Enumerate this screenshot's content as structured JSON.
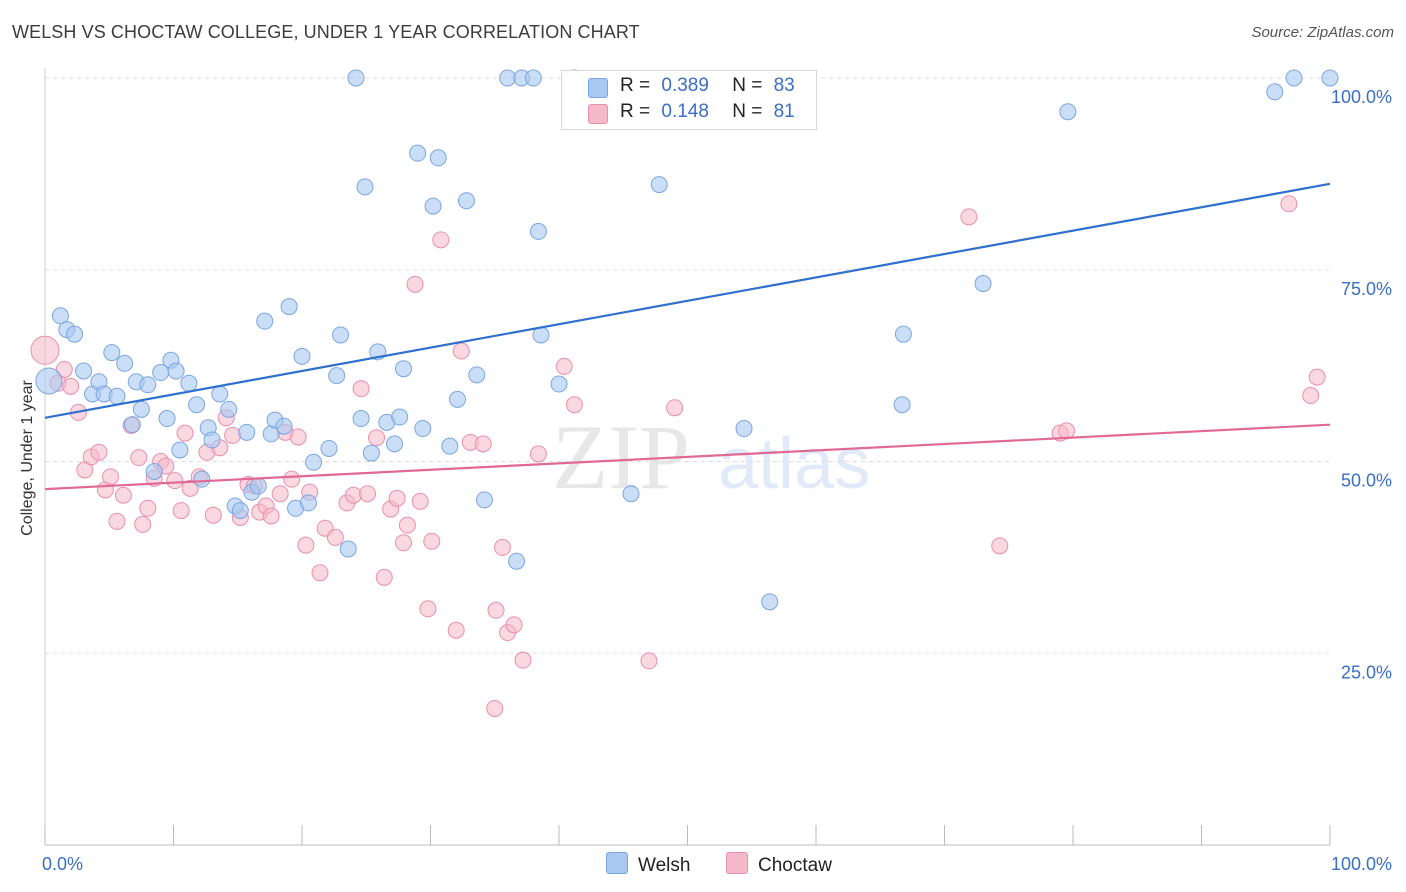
{
  "title": "WELSH VS CHOCTAW COLLEGE, UNDER 1 YEAR CORRELATION CHART",
  "source": "Source: ZipAtlas.com",
  "watermark": {
    "zip": "ZIP",
    "atlas": "atlas"
  },
  "legend": {
    "welsh": {
      "r_label": "R =",
      "r_value": "0.389",
      "n_label": "N =",
      "n_value": "83"
    },
    "choctaw": {
      "r_label": "R =",
      "r_value": "0.148",
      "n_label": "N =",
      "n_value": "81"
    }
  },
  "bottom_legend": {
    "welsh": "Welsh",
    "choctaw": "Choctaw"
  },
  "colors": {
    "welsh_fill": "#a9c8f2",
    "welsh_stroke": "#7aa6e0",
    "welsh_line": "#2f6fcf",
    "choctaw_fill": "#f6b8cb",
    "choctaw_stroke": "#e98fab",
    "choctaw_line": "#e06a94",
    "tick_label": "#3a6fc6",
    "grid": "#dddddd"
  },
  "chart_data": {
    "type": "scatter",
    "xlabel": "",
    "ylabel": "College, Under 1 year",
    "xlim": [
      0,
      100
    ],
    "ylim": [
      0,
      100
    ],
    "x_tick_labels": [
      "0.0%",
      "100.0%"
    ],
    "y_tick_labels": [
      "25.0%",
      "50.0%",
      "75.0%",
      "100.0%"
    ],
    "y_ticks": [
      25,
      50,
      75,
      100
    ],
    "grid": true,
    "legend_position": "top-center",
    "series": [
      {
        "name": "Welsh",
        "trend": {
          "x": [
            0,
            100
          ],
          "y": [
            55.7,
            86.2
          ]
        },
        "points": [
          [
            0.3,
            60.5
          ],
          [
            1.2,
            69
          ],
          [
            1.7,
            67.2
          ],
          [
            2.3,
            66.6
          ],
          [
            3,
            61.8
          ],
          [
            3.7,
            58.8
          ],
          [
            4.2,
            60.4
          ],
          [
            4.6,
            58.8
          ],
          [
            5.2,
            64.2
          ],
          [
            5.6,
            58.5
          ],
          [
            6.2,
            62.8
          ],
          [
            6.8,
            54.8
          ],
          [
            7.1,
            60.4
          ],
          [
            7.5,
            56.8
          ],
          [
            8,
            60
          ],
          [
            8.5,
            48.7
          ],
          [
            9,
            61.6
          ],
          [
            9.5,
            55.6
          ],
          [
            9.8,
            63.2
          ],
          [
            10.2,
            61.8
          ],
          [
            10.5,
            51.5
          ],
          [
            11.2,
            60.2
          ],
          [
            11.8,
            57.4
          ],
          [
            12.2,
            47.7
          ],
          [
            12.7,
            54.4
          ],
          [
            13,
            52.8
          ],
          [
            13.6,
            58.8
          ],
          [
            14.3,
            56.8
          ],
          [
            14.8,
            44.2
          ],
          [
            15.2,
            43.6
          ],
          [
            15.7,
            53.8
          ],
          [
            16.1,
            46
          ],
          [
            16.6,
            46.8
          ],
          [
            17.1,
            68.3
          ],
          [
            17.6,
            53.6
          ],
          [
            17.9,
            55.4
          ],
          [
            18.6,
            54.6
          ],
          [
            19,
            70.2
          ],
          [
            19.5,
            43.9
          ],
          [
            20,
            63.7
          ],
          [
            20.5,
            44.6
          ],
          [
            20.9,
            49.9
          ],
          [
            22.1,
            51.7
          ],
          [
            22.7,
            61.2
          ],
          [
            23,
            66.5
          ],
          [
            23.6,
            38.6
          ],
          [
            24.2,
            100
          ],
          [
            24.6,
            55.6
          ],
          [
            24.9,
            85.8
          ],
          [
            25.4,
            51.1
          ],
          [
            25.9,
            64.3
          ],
          [
            26.6,
            55.1
          ],
          [
            27.2,
            52.3
          ],
          [
            27.6,
            55.8
          ],
          [
            27.9,
            62.1
          ],
          [
            29,
            90.2
          ],
          [
            29.4,
            54.3
          ],
          [
            30.2,
            83.3
          ],
          [
            30.6,
            89.6
          ],
          [
            31.5,
            52
          ],
          [
            32.1,
            58.1
          ],
          [
            32.8,
            84
          ],
          [
            33.6,
            61.3
          ],
          [
            34.2,
            45
          ],
          [
            36,
            100
          ],
          [
            36.7,
            37
          ],
          [
            37.1,
            100
          ],
          [
            38,
            100
          ],
          [
            38.4,
            80
          ],
          [
            38.6,
            66.5
          ],
          [
            40,
            60.1
          ],
          [
            41.2,
            100
          ],
          [
            45.6,
            45.8
          ],
          [
            47.8,
            86.1
          ],
          [
            54.4,
            54.3
          ],
          [
            56.4,
            31.7
          ],
          [
            66.7,
            57.4
          ],
          [
            66.8,
            66.6
          ],
          [
            73,
            73.2
          ],
          [
            79.6,
            95.6
          ],
          [
            95.7,
            98.2
          ],
          [
            97.2,
            100
          ],
          [
            100,
            100
          ]
        ]
      },
      {
        "name": "Choctaw",
        "trend": {
          "x": [
            0,
            100
          ],
          "y": [
            46.4,
            54.8
          ]
        },
        "points": [
          [
            0,
            64.5
          ],
          [
            1,
            60.2
          ],
          [
            1.5,
            62
          ],
          [
            2,
            59.8
          ],
          [
            2.6,
            56.4
          ],
          [
            3.1,
            48.9
          ],
          [
            3.6,
            50.6
          ],
          [
            4.2,
            51.2
          ],
          [
            4.7,
            46.3
          ],
          [
            5.1,
            48
          ],
          [
            5.6,
            42.2
          ],
          [
            6.1,
            45.6
          ],
          [
            6.7,
            54.7
          ],
          [
            7.3,
            50.5
          ],
          [
            7.6,
            41.8
          ],
          [
            8,
            43.9
          ],
          [
            8.5,
            47.8
          ],
          [
            9,
            50
          ],
          [
            9.4,
            49.4
          ],
          [
            10.1,
            47.5
          ],
          [
            10.6,
            43.6
          ],
          [
            10.9,
            53.7
          ],
          [
            11.3,
            46.5
          ],
          [
            12,
            48
          ],
          [
            12.6,
            51.2
          ],
          [
            13.1,
            43
          ],
          [
            13.6,
            51.8
          ],
          [
            14.1,
            55.7
          ],
          [
            14.6,
            53.4
          ],
          [
            15.2,
            42.7
          ],
          [
            15.8,
            47
          ],
          [
            16.3,
            46.8
          ],
          [
            16.7,
            43.4
          ],
          [
            17.2,
            44.2
          ],
          [
            17.6,
            42.9
          ],
          [
            18.3,
            45.8
          ],
          [
            18.7,
            53.8
          ],
          [
            19.2,
            47.7
          ],
          [
            19.7,
            53.2
          ],
          [
            20.3,
            39.1
          ],
          [
            20.6,
            46
          ],
          [
            21.4,
            35.5
          ],
          [
            21.8,
            41.3
          ],
          [
            22.6,
            40.1
          ],
          [
            23.5,
            44.6
          ],
          [
            24,
            45.6
          ],
          [
            24.6,
            59.5
          ],
          [
            25.1,
            45.8
          ],
          [
            25.8,
            53.1
          ],
          [
            26.4,
            34.9
          ],
          [
            26.9,
            43.8
          ],
          [
            27.4,
            45.2
          ],
          [
            27.9,
            39.4
          ],
          [
            28.2,
            41.7
          ],
          [
            28.8,
            73.1
          ],
          [
            29.2,
            44.8
          ],
          [
            29.8,
            30.8
          ],
          [
            30.1,
            39.6
          ],
          [
            30.8,
            78.9
          ],
          [
            32,
            28
          ],
          [
            32.4,
            64.4
          ],
          [
            33.1,
            52.5
          ],
          [
            34.1,
            52.3
          ],
          [
            35.1,
            30.6
          ],
          [
            35.6,
            38.8
          ],
          [
            36,
            27.7
          ],
          [
            36.5,
            28.7
          ],
          [
            37.2,
            24.1
          ],
          [
            35,
            17.8
          ],
          [
            38.4,
            51
          ],
          [
            40.4,
            62.4
          ],
          [
            41.2,
            57.4
          ],
          [
            47,
            24
          ],
          [
            49,
            57
          ],
          [
            71.9,
            81.9
          ],
          [
            74.3,
            39
          ],
          [
            79,
            53.7
          ],
          [
            79.5,
            54
          ],
          [
            96.8,
            83.6
          ],
          [
            98.5,
            58.6
          ],
          [
            99,
            61
          ]
        ]
      }
    ]
  }
}
